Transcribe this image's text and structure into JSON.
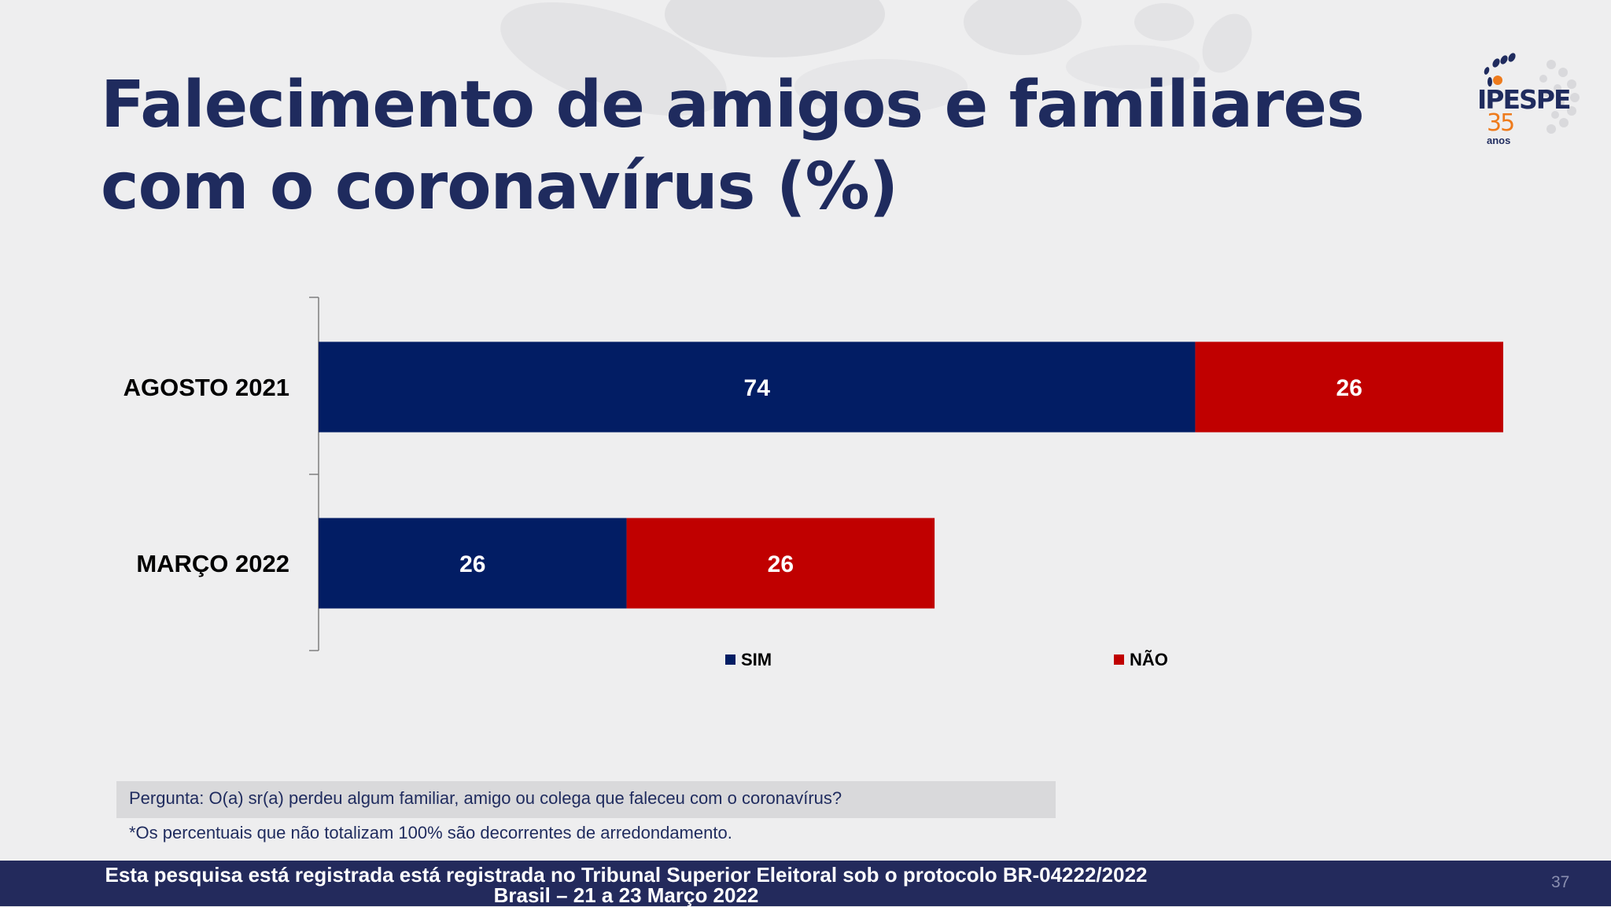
{
  "slide": {
    "title_line1": "Falecimento de amigos e familiares",
    "title_line2": "com o coronavírus (%)",
    "question": "Pergunta:  O(a) sr(a) perdeu algum familiar, amigo ou colega que faleceu com o coronavírus?",
    "note": "*Os percentuais que não totalizam 100% são decorrentes de arredondamento.",
    "footer_line1": "Esta pesquisa está registrada está registrada no Tribunal Superior Eleitoral sob o protocolo BR-04222/2022",
    "footer_line2": "Brasil – 21 a 23 Março 2022",
    "page_number": "37"
  },
  "logo": {
    "name": "IPESPE",
    "number": "35",
    "sub": "anos",
    "colors": {
      "navy": "#1f2b5e",
      "orange": "#ee7b1c"
    }
  },
  "chart_data": {
    "type": "bar",
    "orientation": "horizontal",
    "stacked": true,
    "categories": [
      "AGOSTO 2021",
      "MARÇO 2022"
    ],
    "series": [
      {
        "name": "SIM",
        "values": [
          74,
          26
        ],
        "color": "#021d64"
      },
      {
        "name": "NÃO",
        "values": [
          26,
          26
        ],
        "color": "#c00000"
      }
    ],
    "xlim": [
      0,
      100
    ],
    "legend_position": "bottom",
    "data_labels": true,
    "grid": false
  }
}
